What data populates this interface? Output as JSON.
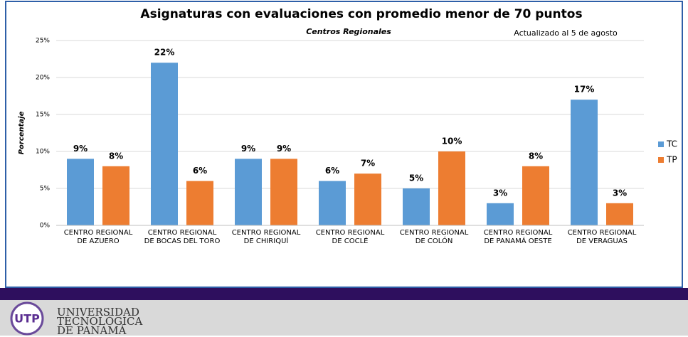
{
  "chart_data": {
    "type": "bar",
    "title": "Asignaturas con evaluaciones con promedio menor de 70 puntos",
    "subtitle": "Centros Regionales",
    "annotation": "Actualizado al 5 de agosto",
    "y_label": "Porcentaje",
    "categories": [
      "CENTRO REGIONAL\nDE AZUERO",
      "CENTRO REGIONAL\nDE BOCAS DEL TORO",
      "CENTRO REGIONAL\nDE CHIRIQUÍ",
      "CENTRO REGIONAL\nDE COCLÉ",
      "CENTRO REGIONAL\nDE COLÓN",
      "CENTRO REGIONAL\nDE PANAMÁ OESTE",
      "CENTRO REGIONAL\nDE VERAGUAS"
    ],
    "series": [
      {
        "name": "TC",
        "color": "#5b9bd5",
        "values": [
          9,
          22,
          9,
          6,
          5,
          3,
          17
        ],
        "value_labels": [
          "9%",
          "22%",
          "9%",
          "6%",
          "5%",
          "3%",
          "17%"
        ]
      },
      {
        "name": "TP",
        "color": "#ed7d31",
        "values": [
          8,
          6,
          9,
          7,
          10,
          8,
          3
        ],
        "value_labels": [
          "8%",
          "6%",
          "9%",
          "7%",
          "10%",
          "8%",
          "3%"
        ]
      }
    ],
    "ylim": [
      0,
      25
    ],
    "yticks": [
      {
        "value": 0,
        "label": "0%"
      },
      {
        "value": 5,
        "label": "5%"
      },
      {
        "value": 10,
        "label": "10%"
      },
      {
        "value": 15,
        "label": "15%"
      },
      {
        "value": 20,
        "label": "20%"
      },
      {
        "value": 25,
        "label": "25%"
      }
    ],
    "grid": true,
    "legend": "right"
  },
  "footer": {
    "lines": [
      "UNIVERSIDAD",
      "TECNOLÓGICA",
      "DE PANAMÁ"
    ]
  }
}
